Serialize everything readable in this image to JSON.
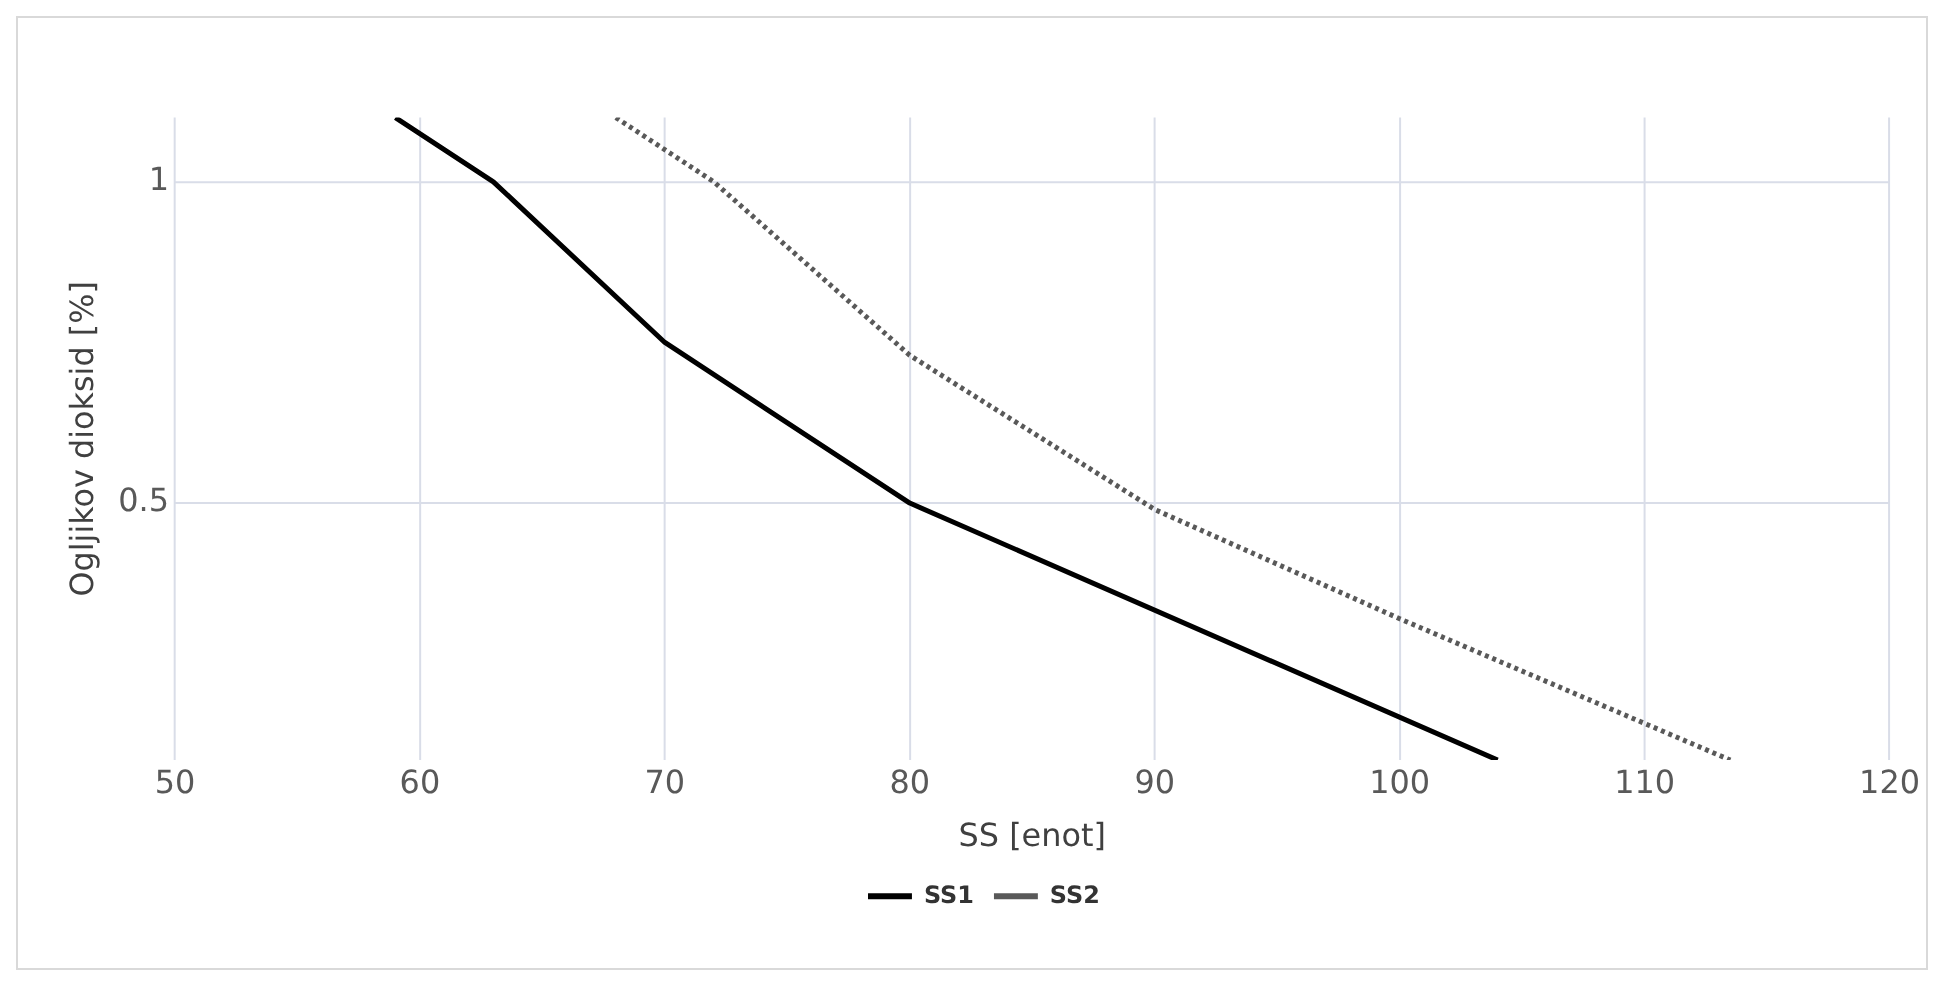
{
  "chart_data": {
    "type": "line",
    "xlabel": "SS [enot]",
    "ylabel": "Ogljikov dioksid [%]",
    "xlim": [
      50,
      120
    ],
    "xticks": [
      50,
      60,
      70,
      80,
      90,
      100,
      110,
      120
    ],
    "ylim": [
      0.1,
      1.1
    ],
    "yticks": [
      0.5,
      1
    ],
    "grid": true,
    "legend": "bottom",
    "marker": "none",
    "series": [
      {
        "name": "SS1",
        "color": "#000000",
        "line_style": "solid",
        "x": [
          59,
          63,
          70,
          80,
          104
        ],
        "values": [
          1.1,
          1,
          0.75,
          0.5,
          0.1
        ]
      },
      {
        "name": "SS2",
        "color": "#595959",
        "line_style": "dotted",
        "x": [
          68,
          72,
          80,
          90,
          100,
          113.5
        ],
        "values": [
          1.1,
          1,
          0.73,
          0.49,
          0.32,
          0.1
        ]
      }
    ]
  }
}
